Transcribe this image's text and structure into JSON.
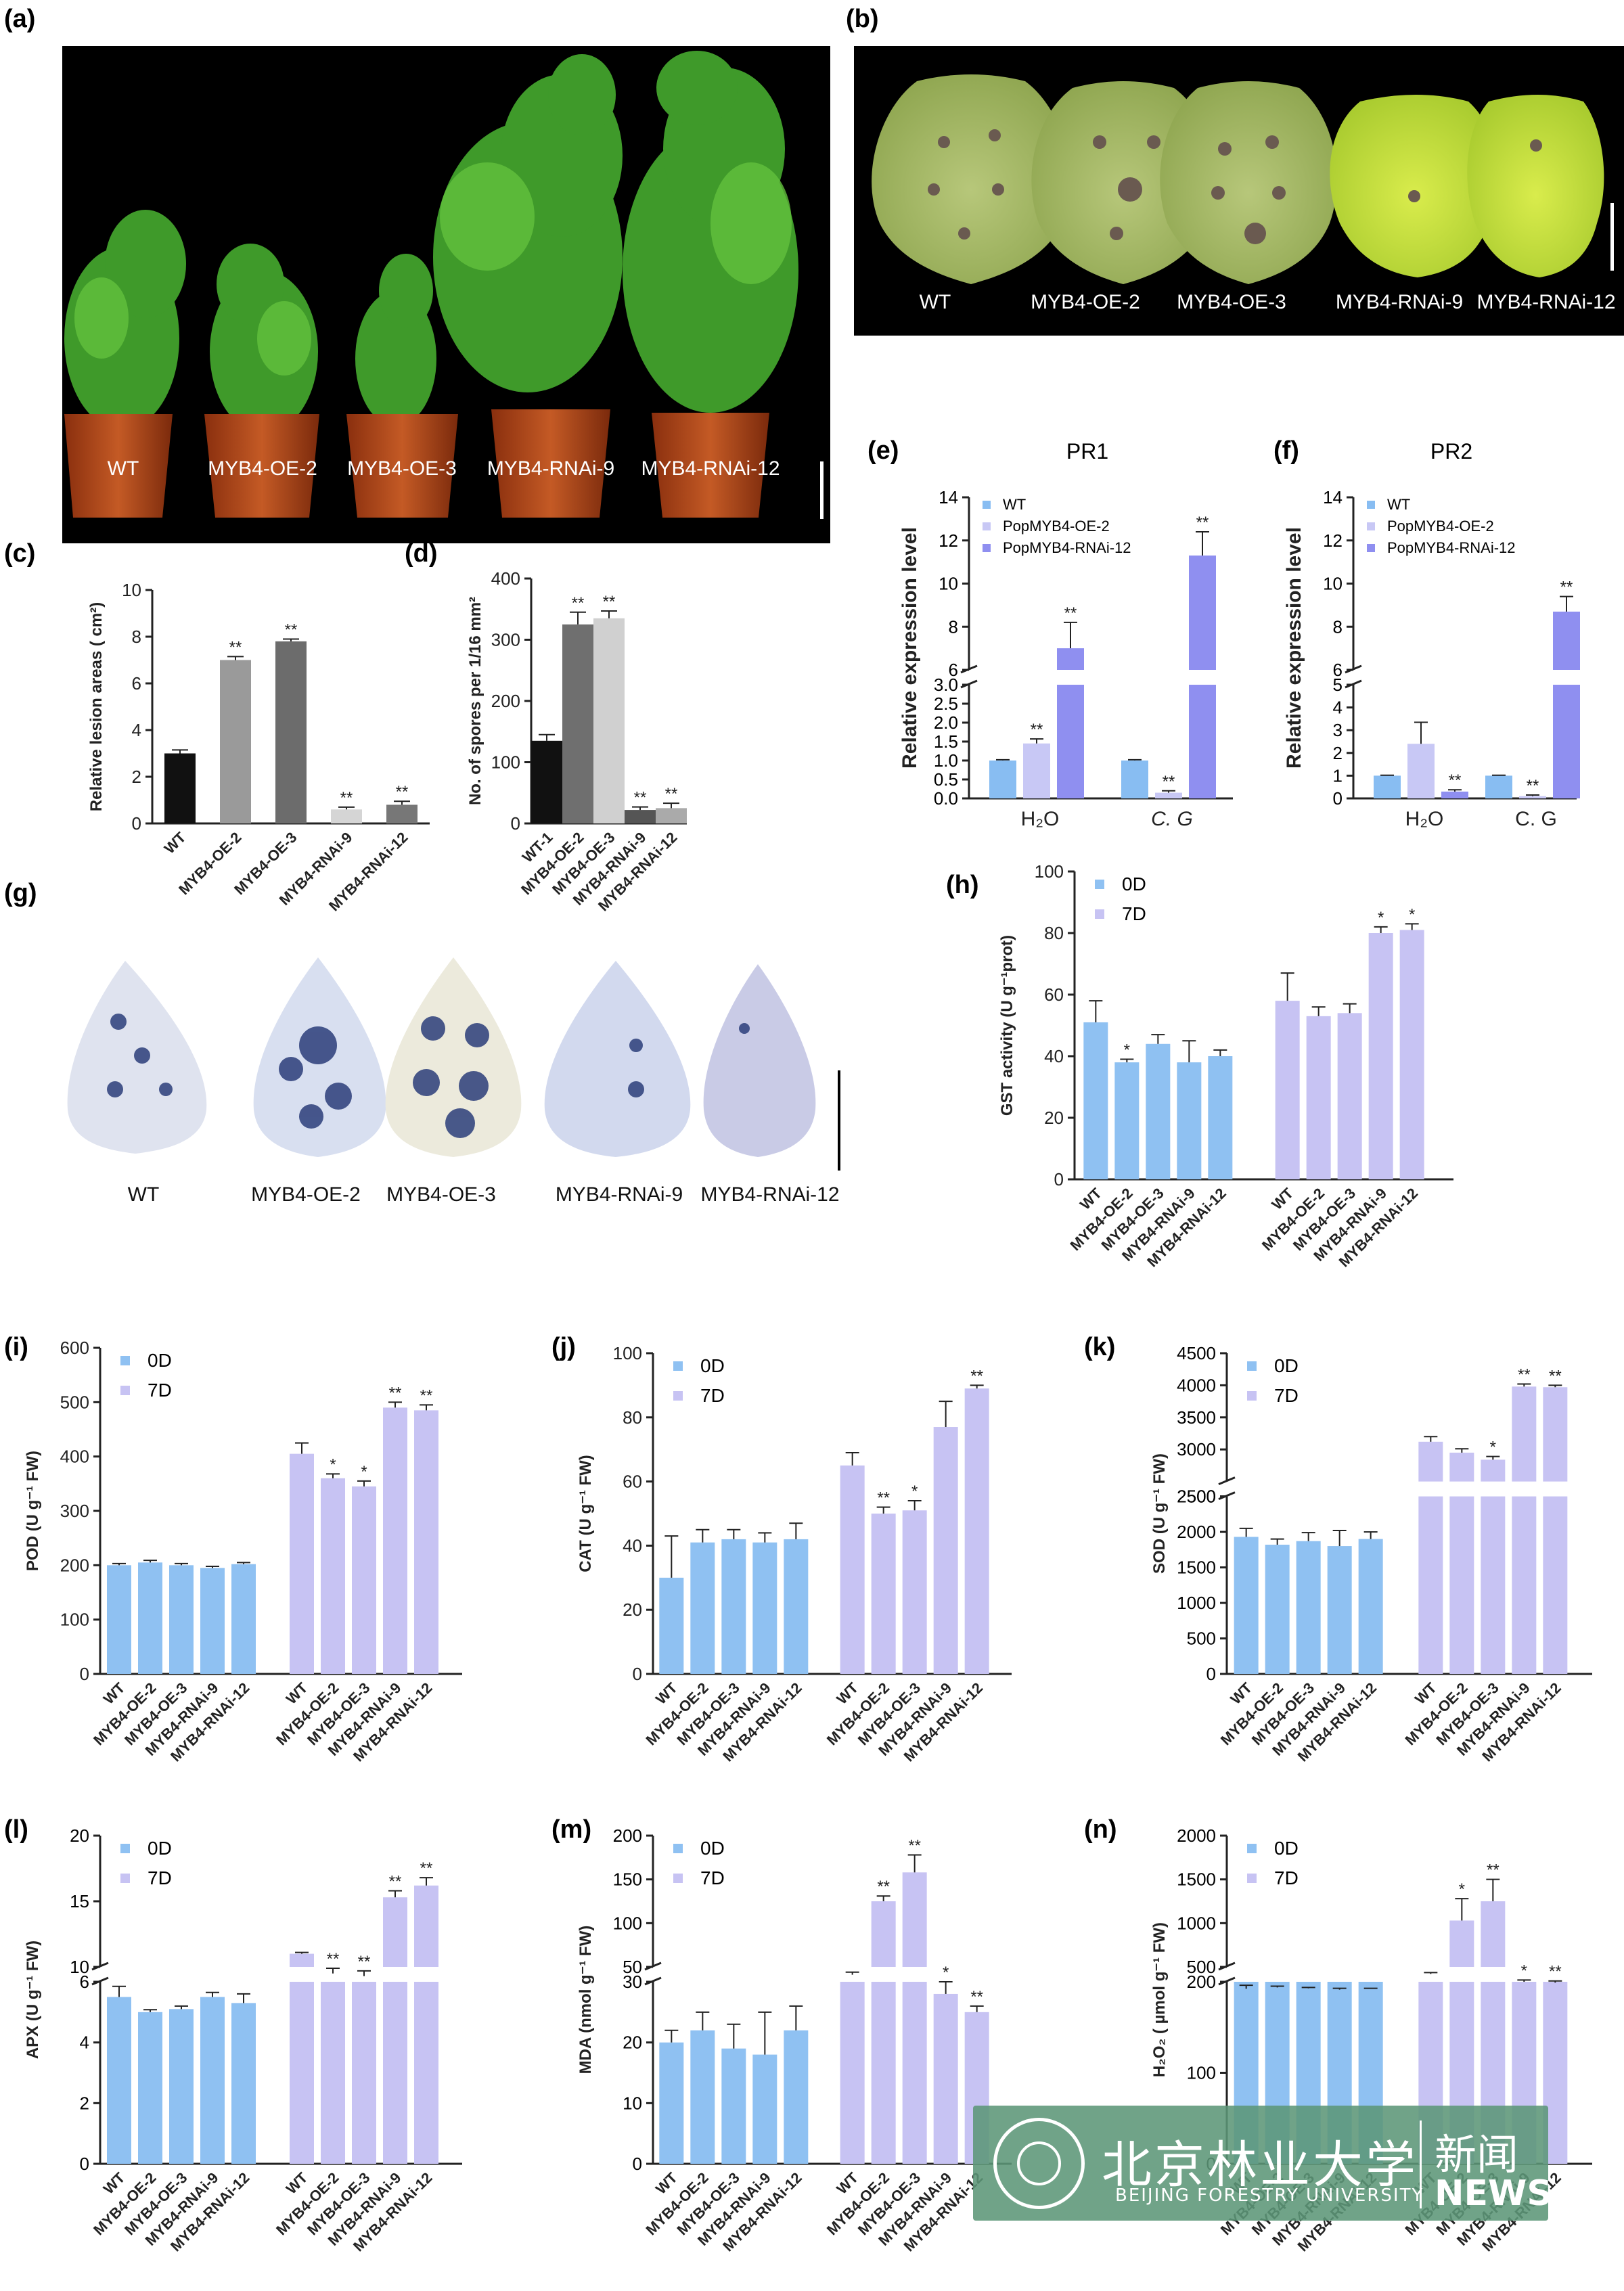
{
  "panels": {
    "a": {
      "label": "(a)",
      "captions": [
        "WT",
        "MYB4-OE-2",
        "MYB4-OE-3",
        "MYB4-RNAi-9",
        "MYB4-RNAi-12"
      ]
    },
    "b": {
      "label": "(b)",
      "captions": [
        "WT",
        "MYB4-OE-2",
        "MYB4-OE-3",
        "MYB4-RNAi-9",
        "MYB4-RNAi-12"
      ]
    },
    "g": {
      "label": "(g)",
      "captions": [
        "WT",
        "MYB4-OE-2",
        "MYB4-OE-3",
        "MYB4-RNAi-9",
        "MYB4-RNAi-12"
      ]
    }
  },
  "watermark": {
    "cn": "北京林业大学",
    "en": "BEIJING FORESTRY UNIVERSITY",
    "news_cn": "新闻",
    "news_en": "NEWS"
  },
  "colors": {
    "c0": "#88bdf2",
    "c1": "#c8c8f5",
    "c2": "#8f8ff0",
    "bar0D": "#8fc1f2",
    "bar7D": "#c7c3f3"
  },
  "chart_data": [
    {
      "id": "c",
      "label": "(c)",
      "type": "bar",
      "ylabel": "Relative lesion areas ( cm²)",
      "ylim": [
        0,
        10
      ],
      "yticks": [
        0,
        2,
        4,
        6,
        8,
        10
      ],
      "categories": [
        "WT",
        "MYB4-OE-2",
        "MYB4-OE-3",
        "MYB4-RNAi-9",
        "MYB4-RNAi-12"
      ],
      "values": [
        3.0,
        7.0,
        7.8,
        0.6,
        0.8
      ],
      "errors": [
        0.15,
        0.15,
        0.1,
        0.1,
        0.15
      ],
      "sig": [
        "",
        "**",
        "**",
        "**",
        "**"
      ],
      "colors": [
        "#111111",
        "#9a9a9a",
        "#6c6c6c",
        "#d5d5d5",
        "#777777"
      ]
    },
    {
      "id": "d",
      "label": "(d)",
      "type": "bar",
      "ylabel": "No. of spores per 1/16 mm²",
      "ylim": [
        0,
        400
      ],
      "yticks": [
        0,
        100,
        200,
        300,
        400
      ],
      "categories": [
        "WT-1",
        "MYB4-OE-2",
        "MYB4-OE-3",
        "MYB4-RNAi-9",
        "MYB4-RNAi-12"
      ],
      "values": [
        135,
        325,
        335,
        22,
        25
      ],
      "errors": [
        10,
        20,
        12,
        5,
        8
      ],
      "sig": [
        "",
        "**",
        "**",
        "**",
        "**"
      ],
      "colors": [
        "#111111",
        "#6f6f6f",
        "#d0d0d0",
        "#555555",
        "#aaaaaa"
      ]
    },
    {
      "id": "e",
      "label": "(e)",
      "title": "PR1",
      "type": "bar",
      "ylabel": "Relative expression level",
      "legend": [
        "WT",
        "PopMYB4-OE-2",
        "PopMYB4-RNAi-12"
      ],
      "groups": [
        "H₂O",
        "C. G"
      ],
      "yticks_low": [
        0.0,
        0.5,
        1.0,
        1.5,
        2.0,
        2.5,
        3.0
      ],
      "yticks_high": [
        6,
        8,
        10,
        12,
        14
      ],
      "values": [
        [
          1.0,
          1.45,
          7.0
        ],
        [
          1.0,
          0.15,
          11.3
        ]
      ],
      "errors": [
        [
          0.02,
          0.12,
          1.2
        ],
        [
          0.02,
          0.05,
          1.1
        ]
      ],
      "sig": [
        [
          "",
          "**",
          "**"
        ],
        [
          "",
          "**",
          "**"
        ]
      ]
    },
    {
      "id": "f",
      "label": "(f)",
      "title": "PR2",
      "type": "bar",
      "ylabel": "Relative expression level",
      "legend": [
        "WT",
        "PopMYB4-OE-2",
        "PopMYB4-RNAi-12"
      ],
      "groups": [
        "H₂O",
        "C. G"
      ],
      "yticks_low": [
        0,
        1,
        2,
        3,
        4,
        5
      ],
      "yticks_high": [
        6,
        8,
        10,
        12,
        14
      ],
      "values": [
        [
          1.0,
          2.4,
          0.3
        ],
        [
          1.0,
          0.1,
          8.7
        ]
      ],
      "errors": [
        [
          0.02,
          0.95,
          0.08
        ],
        [
          0.02,
          0.05,
          0.7
        ]
      ],
      "sig": [
        [
          "",
          "",
          "**"
        ],
        [
          "",
          "**",
          "**"
        ]
      ]
    },
    {
      "id": "h",
      "label": "(h)",
      "type": "bar",
      "ylabel": "GST activity (U g⁻¹prot)",
      "ylim": [
        0,
        100
      ],
      "yticks": [
        0,
        20,
        40,
        60,
        80,
        100
      ],
      "legend": [
        "0D",
        "7D"
      ],
      "categories": [
        "WT",
        "MYB4-OE-2",
        "MYB4-OE-3",
        "MYB4-RNAi-9",
        "MYB4-RNAi-12"
      ],
      "series": [
        {
          "name": "0D",
          "values": [
            51,
            38,
            44,
            38,
            40
          ],
          "errors": [
            7,
            1,
            3,
            7,
            2
          ],
          "sig": [
            "",
            "*",
            "",
            "",
            ""
          ]
        },
        {
          "name": "7D",
          "values": [
            58,
            53,
            54,
            80,
            81
          ],
          "errors": [
            9,
            3,
            3,
            2,
            2
          ],
          "sig": [
            "",
            "",
            "",
            "*",
            "*"
          ]
        }
      ]
    },
    {
      "id": "i",
      "label": "(i)",
      "type": "bar",
      "ylabel": "POD (U g⁻¹ FW)",
      "ylim": [
        0,
        600
      ],
      "yticks": [
        0,
        100,
        200,
        300,
        400,
        500,
        600
      ],
      "legend": [
        "0D",
        "7D"
      ],
      "categories": [
        "WT",
        "MYB4-OE-2",
        "MYB4-OE-3",
        "MYB4-RNAi-9",
        "MYB4-RNAi-12"
      ],
      "series": [
        {
          "name": "0D",
          "values": [
            200,
            205,
            200,
            195,
            202
          ],
          "errors": [
            3,
            4,
            3,
            3,
            3
          ],
          "sig": [
            "",
            "",
            "",
            "",
            ""
          ]
        },
        {
          "name": "7D",
          "values": [
            405,
            360,
            345,
            490,
            485
          ],
          "errors": [
            20,
            8,
            10,
            10,
            10
          ],
          "sig": [
            "",
            "*",
            "*",
            "**",
            "**"
          ]
        }
      ]
    },
    {
      "id": "j",
      "label": "(j)",
      "type": "bar",
      "ylabel": "CAT (U g⁻¹ FW)",
      "ylim": [
        0,
        100
      ],
      "yticks": [
        0,
        20,
        40,
        60,
        80,
        100
      ],
      "legend": [
        "0D",
        "7D"
      ],
      "categories": [
        "WT",
        "MYB4-OE-2",
        "MYB4-OE-3",
        "MYB4-RNAi-9",
        "MYB4-RNAi-12"
      ],
      "series": [
        {
          "name": "0D",
          "values": [
            30,
            41,
            42,
            41,
            42
          ],
          "errors": [
            13,
            4,
            3,
            3,
            5
          ],
          "sig": [
            "",
            "",
            "",
            "",
            ""
          ]
        },
        {
          "name": "7D",
          "values": [
            65,
            50,
            51,
            77,
            89
          ],
          "errors": [
            4,
            2,
            3,
            8,
            1
          ],
          "sig": [
            "",
            "**",
            "*",
            "",
            "**"
          ]
        }
      ]
    },
    {
      "id": "k",
      "label": "(k)",
      "type": "bar",
      "ylabel": "SOD (U g⁻¹ FW)",
      "legend": [
        "0D",
        "7D"
      ],
      "yticks_low": [
        0,
        500,
        1000,
        1500,
        2000,
        2500
      ],
      "yticks_high": [
        2500,
        3000,
        3500,
        4000,
        4500
      ],
      "categories": [
        "WT",
        "MYB4-OE-2",
        "MYB4-OE-3",
        "MYB4-RNAi-9",
        "MYB4-RNAi-12"
      ],
      "series": [
        {
          "name": "0D",
          "values": [
            1930,
            1820,
            1870,
            1800,
            1900
          ],
          "errors": [
            120,
            80,
            120,
            220,
            100
          ],
          "sig": [
            "",
            "",
            "",
            "",
            ""
          ]
        },
        {
          "name": "7D",
          "values": [
            3120,
            2950,
            2840,
            3980,
            3970
          ],
          "errors": [
            80,
            60,
            50,
            40,
            30
          ],
          "sig": [
            "",
            "",
            "*",
            "**",
            "**"
          ]
        }
      ]
    },
    {
      "id": "l",
      "label": "(l)",
      "type": "bar",
      "ylabel": "APX (U g⁻¹ FW)",
      "legend": [
        "0D",
        "7D"
      ],
      "yticks_low": [
        0,
        2,
        4,
        6
      ],
      "yticks_high": [
        10,
        15,
        20
      ],
      "categories": [
        "WT",
        "MYB4-OE-2",
        "MYB4-OE-3",
        "MYB4-RNAi-9",
        "MYB4-RNAi-12"
      ],
      "series": [
        {
          "name": "0D",
          "values": [
            5.5,
            5.0,
            5.1,
            5.5,
            5.3
          ],
          "errors": [
            0.35,
            0.08,
            0.1,
            0.15,
            0.3
          ],
          "sig": [
            "",
            "",
            "",
            "",
            ""
          ]
        },
        {
          "name": "7D",
          "values": [
            11.0,
            9.5,
            9.3,
            15.3,
            16.2
          ],
          "errors": [
            0.1,
            0.4,
            0.4,
            0.5,
            0.6
          ],
          "sig": [
            "",
            "**",
            "**",
            "**",
            "**"
          ]
        }
      ]
    },
    {
      "id": "m",
      "label": "(m)",
      "type": "bar",
      "ylabel": "MDA (nmol g⁻¹ FW)",
      "legend": [
        "0D",
        "7D"
      ],
      "yticks_low": [
        0,
        10,
        20,
        30
      ],
      "yticks_high": [
        50,
        100,
        150,
        200
      ],
      "categories": [
        "WT",
        "MYB4-OE-2",
        "MYB4-OE-3",
        "MYB4-RNAi-9",
        "MYB4-RNAi-12"
      ],
      "series": [
        {
          "name": "0D",
          "values": [
            20,
            22,
            19,
            18,
            22
          ],
          "errors": [
            2,
            3,
            4,
            7,
            4
          ],
          "sig": [
            "",
            "",
            "",
            "",
            ""
          ]
        },
        {
          "name": "7D",
          "values": [
            41,
            125,
            158,
            28,
            25
          ],
          "errors": [
            3,
            6,
            20,
            2,
            1
          ],
          "sig": [
            "",
            "**",
            "**",
            "*",
            "**"
          ]
        }
      ]
    },
    {
      "id": "n",
      "label": "(n)",
      "type": "bar",
      "ylabel": "H₂O₂ ( µmol g⁻¹ FW)",
      "legend": [
        "0D",
        "7D"
      ],
      "yticks_low": [
        0,
        100,
        200
      ],
      "yticks_high": [
        500,
        1000,
        1500,
        2000
      ],
      "categories": [
        "WT",
        "MYB4-OE-2",
        "MYB4-OE-3",
        "MYB4-RNAi-9",
        "MYB4-RNAi-12"
      ],
      "series": [
        {
          "name": "0D",
          "values": [
            250,
            265,
            255,
            240,
            250
          ],
          "errors": [
            40,
            15,
            10,
            15,
            5
          ],
          "sig": [
            "",
            "",
            "",
            "",
            ""
          ]
        },
        {
          "name": "7D",
          "values": [
            420,
            1030,
            1250,
            330,
            320
          ],
          "errors": [
            15,
            250,
            250,
            20,
            20
          ],
          "sig": [
            "",
            "*",
            "**",
            "*",
            "**"
          ]
        }
      ]
    }
  ]
}
